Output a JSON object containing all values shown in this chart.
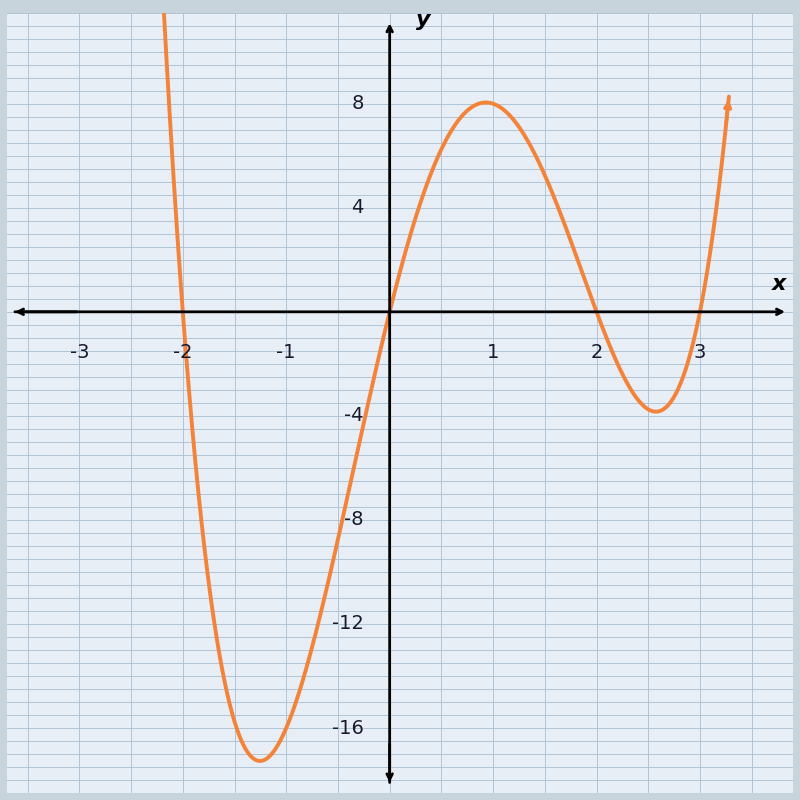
{
  "title": "",
  "xlabel": "x",
  "ylabel": "y",
  "xlim": [
    -3.7,
    3.9
  ],
  "ylim": [
    -18.5,
    11.5
  ],
  "xticks": [
    -3,
    -2,
    -1,
    1,
    2,
    3
  ],
  "yticks": [
    -16,
    -12,
    -8,
    -4,
    4,
    8
  ],
  "curve_color": "#F4833A",
  "curve_linewidth": 2.8,
  "grid_color": "#afc4d8",
  "plot_bg_color": "#e8eef5",
  "fig_bg_color": "#c8d4dc",
  "figsize": [
    8.0,
    8.0
  ],
  "dpi": 100,
  "coeff_A": 1.354,
  "x_start": -2.65,
  "x_end": 3.35,
  "n_points": 1000
}
